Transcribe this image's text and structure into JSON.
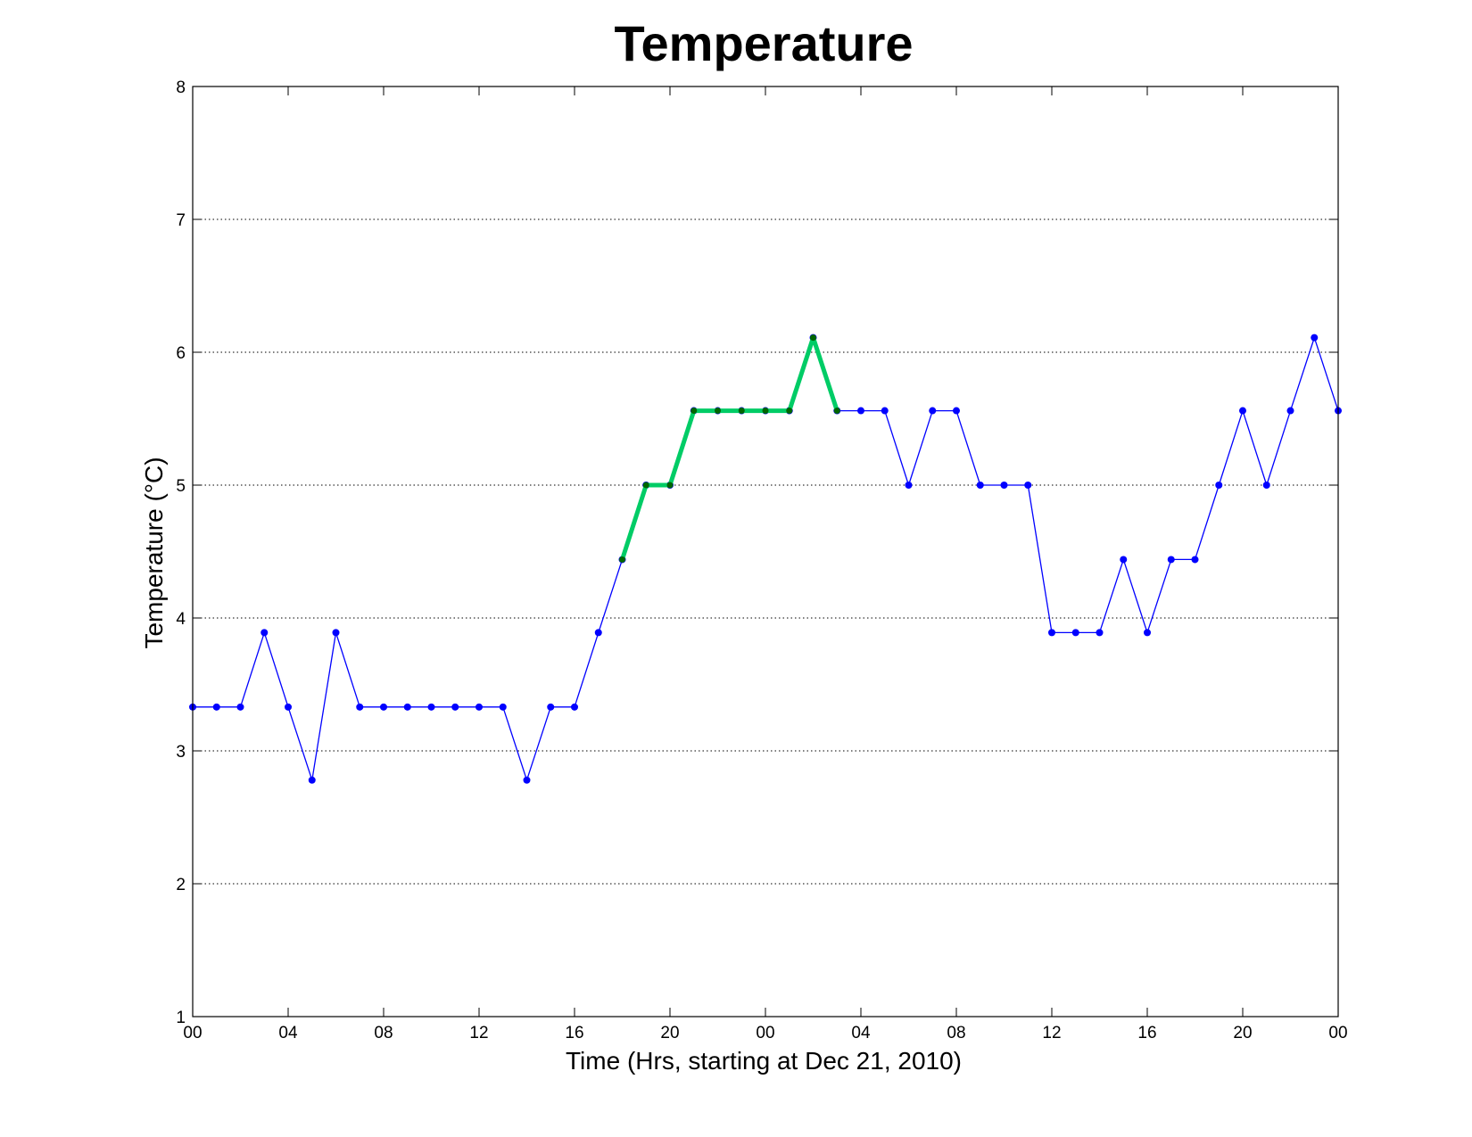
{
  "chart_data": {
    "type": "line",
    "title": "Temperature",
    "xlabel": "Time (Hrs, starting at Dec 21, 2010)",
    "ylabel": "Temperature (°C)",
    "x_unit": "hours",
    "xlim": [
      0,
      48
    ],
    "ylim": [
      1,
      8
    ],
    "yticks": [
      1,
      2,
      3,
      4,
      5,
      6,
      7,
      8
    ],
    "xticks": [
      0,
      4,
      8,
      12,
      16,
      20,
      24,
      28,
      32,
      36,
      40,
      44,
      48
    ],
    "xtick_labels": [
      "00",
      "04",
      "08",
      "12",
      "16",
      "20",
      "00",
      "04",
      "08",
      "12",
      "16",
      "20",
      "00"
    ],
    "grid": "horizontal dotted",
    "series": [
      {
        "color": "#0000ff",
        "marker_color": "#0000ff",
        "x": [
          0,
          1,
          2,
          3,
          4,
          5,
          6,
          7,
          8,
          9,
          10,
          11,
          12,
          13,
          14,
          15,
          16,
          17,
          18,
          19,
          20,
          21,
          22,
          23,
          24,
          25,
          26,
          27,
          28,
          29,
          30,
          31,
          32,
          33,
          34,
          35,
          36,
          37,
          38,
          39,
          40,
          41,
          42,
          43,
          44,
          45,
          46,
          47,
          48
        ],
        "values": [
          3.33,
          3.33,
          3.33,
          3.89,
          3.33,
          2.78,
          3.89,
          3.33,
          3.33,
          3.33,
          3.33,
          3.33,
          3.33,
          3.33,
          2.78,
          3.33,
          3.33,
          3.89,
          4.44,
          5.0,
          5.0,
          5.56,
          5.56,
          5.56,
          5.56,
          5.56,
          6.11,
          5.56,
          5.56,
          5.56,
          5.0,
          5.56,
          5.56,
          5.0,
          5.0,
          5.0,
          3.89,
          3.89,
          3.89,
          4.44,
          3.89,
          4.44,
          4.44,
          5.0,
          5.56,
          5.0,
          5.56,
          6.11,
          5.56
        ]
      },
      {
        "color": "#00cc66",
        "marker_color": "#006600",
        "x": [
          18,
          19,
          20,
          21,
          22,
          23,
          24,
          25,
          26,
          27
        ],
        "values": [
          4.44,
          5.0,
          5.0,
          5.56,
          5.56,
          5.56,
          5.56,
          5.56,
          6.11,
          5.56
        ]
      }
    ]
  }
}
